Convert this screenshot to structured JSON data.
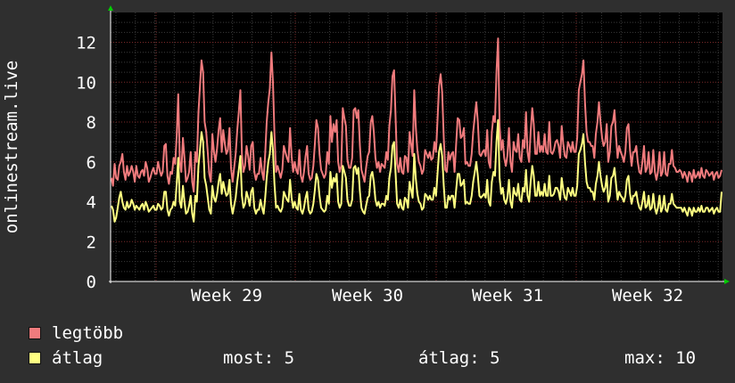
{
  "chart_data": {
    "type": "line",
    "ylabel": "onlinestream.live",
    "ylim": [
      0,
      13.5
    ],
    "yticks": [
      0,
      2,
      4,
      6,
      8,
      10,
      12
    ],
    "x_week_labels": [
      "Week 29",
      "Week 30",
      "Week 31",
      "Week 32"
    ],
    "grid": true,
    "series": [
      {
        "name": "legtöbb",
        "color": "#f07b7d",
        "values": [
          5.2,
          4.8,
          5.9,
          5.2,
          5.1,
          5.8,
          6.0,
          6.4,
          5.5,
          5.1,
          5.8,
          5.3,
          5.5,
          5.8,
          5.5,
          5.0,
          5.8,
          5.3,
          5.2,
          5.5,
          5.6,
          5.3,
          6.0,
          5.7,
          5.0,
          5.2,
          5.5,
          5.7,
          5.4,
          5.4,
          6.0,
          5.6,
          5.3,
          5.5,
          6.8,
          6.9,
          5.3,
          4.9,
          5.5,
          5.4,
          6.2,
          5.9,
          7.3,
          9.4,
          6.0,
          5.5,
          7.2,
          6.2,
          5.0,
          5.2,
          5.5,
          6.5,
          5.0,
          4.5,
          6.5,
          6.0,
          8.5,
          9.8,
          11.1,
          10.5,
          8.0,
          7.5,
          6.5,
          5.4,
          5.0,
          7.4,
          6.5,
          6.0,
          6.7,
          7.6,
          8.2,
          6.5,
          7.6,
          6.9,
          6.4,
          6.6,
          7.7,
          5.7,
          5.0,
          5.7,
          6.4,
          7.6,
          8.5,
          9.6,
          6.4,
          5.5,
          5.8,
          6.8,
          6.3,
          5.6,
          6.8,
          7.0,
          5.5,
          5.1,
          5.4,
          5.4,
          6.2,
          5.5,
          5.1,
          6.4,
          8.0,
          9.0,
          9.7,
          11.5,
          10.0,
          7.4,
          5.5,
          5.8,
          5.5,
          5.2,
          5.6,
          6.8,
          6.5,
          6.2,
          6.0,
          7.7,
          6.3,
          5.5,
          6.0,
          5.6,
          5.4,
          6.6,
          5.3,
          5.0,
          5.5,
          6.3,
          6.8,
          5.4,
          5.1,
          5.2,
          5.8,
          6.9,
          8.1,
          7.7,
          6.4,
          5.6,
          5.4,
          5.2,
          5.4,
          6.5,
          5.9,
          8.3,
          7.0,
          7.9,
          7.5,
          8.1,
          6.0,
          5.5,
          5.8,
          8.7,
          8.2,
          7.8,
          6.1,
          5.7,
          5.7,
          6.2,
          8.6,
          8.7,
          8.2,
          8.6,
          6.8,
          5.6,
          5.3,
          5.0,
          5.7,
          6.3,
          6.5,
          8.0,
          8.3,
          7.5,
          6.2,
          5.7,
          6.0,
          5.5,
          5.9,
          5.8,
          5.7,
          6.5,
          6.1,
          7.8,
          8.6,
          10.3,
          10.6,
          8.2,
          5.9,
          5.5,
          6.2,
          5.5,
          5.4,
          6.3,
          6.2,
          5.5,
          7.5,
          6.9,
          6.3,
          9.6,
          7.8,
          6.6,
          6.0,
          5.8,
          5.4,
          5.6,
          6.6,
          6.4,
          6.2,
          6.5,
          6.1,
          6.2,
          7.0,
          6.5,
          8.1,
          9.8,
          10.4,
          9.5,
          7.2,
          5.6,
          5.5,
          6.5,
          6.1,
          6.4,
          6.5,
          5.5,
          6.9,
          8.2,
          8.1,
          7.2,
          7.3,
          7.7,
          5.9,
          6.0,
          5.8,
          5.8,
          6.4,
          7.5,
          8.3,
          9.0,
          8.0,
          6.4,
          6.3,
          6.5,
          6.6,
          6.3,
          7.6,
          6.0,
          5.7,
          7.5,
          8.3,
          8.0,
          10.5,
          12.2,
          7.8,
          6.6,
          7.1,
          6.2,
          5.8,
          6.3,
          7.7,
          6.0,
          5.5,
          7.0,
          6.6,
          6.5,
          7.4,
          6.2,
          6.0,
          7.1,
          6.7,
          8.5,
          6.5,
          6.0,
          7.5,
          8.7,
          7.9,
          6.4,
          6.4,
          7.5,
          6.5,
          6.8,
          6.5,
          7.4,
          6.5,
          6.4,
          8.0,
          6.5,
          6.4,
          6.6,
          7.0,
          7.1,
          6.8,
          6.2,
          7.8,
          6.9,
          6.3,
          6.2,
          7.0,
          6.8,
          6.5,
          7.0,
          6.5,
          6.5,
          7.2,
          9.6,
          10.0,
          10.4,
          11.1,
          9.0,
          7.5,
          7.0,
          7.0,
          6.8,
          6.8,
          6.2,
          7.4,
          8.0,
          9.0,
          8.0,
          7.2,
          6.8,
          7.0,
          7.9,
          6.0,
          6.5,
          7.8,
          8.0,
          8.6,
          7.3,
          6.2,
          6.8,
          6.5,
          6.3,
          6.0,
          6.5,
          7.7,
          7.9,
          6.6,
          5.8,
          6.5,
          6.5,
          6.8,
          6.0,
          5.5,
          5.4,
          6.0,
          6.8,
          5.5,
          5.7,
          6.5,
          5.4,
          5.5,
          6.6,
          5.5,
          5.1,
          5.5,
          6.5,
          5.3,
          5.5,
          6.5,
          5.4,
          5.3,
          5.9,
          5.9,
          6.6,
          5.8,
          5.7,
          5.5,
          5.5,
          5.6,
          5.5,
          5.2,
          5.5,
          5.3,
          5.0,
          5.5,
          5.4,
          5.0,
          5.6,
          5.2,
          5.3,
          5.5,
          5.2,
          5.7,
          5.3,
          5.2,
          5.6,
          5.5,
          5.3,
          5.4,
          5.5,
          5.1,
          5.4,
          5.5,
          5.2,
          5.3,
          5.6
        ]
      },
      {
        "name": "átlag",
        "color": "#ffff82",
        "values": [
          3.8,
          3.6,
          3.0,
          3.2,
          3.7,
          4.2,
          4.5,
          4.0,
          3.7,
          3.6,
          4.0,
          3.7,
          3.8,
          4.1,
          3.9,
          3.6,
          3.8,
          3.7,
          3.6,
          3.8,
          3.9,
          3.6,
          4.0,
          3.8,
          3.5,
          3.6,
          3.7,
          3.8,
          3.6,
          3.6,
          3.9,
          3.8,
          3.6,
          3.7,
          4.5,
          4.5,
          3.6,
          3.3,
          3.6,
          3.7,
          4.0,
          3.8,
          4.9,
          6.2,
          4.0,
          3.7,
          4.8,
          4.0,
          3.4,
          3.5,
          3.8,
          4.3,
          3.4,
          3.0,
          4.3,
          4.0,
          5.8,
          6.6,
          7.5,
          7.0,
          5.2,
          4.8,
          4.2,
          3.6,
          3.4,
          4.8,
          4.2,
          4.0,
          4.4,
          5.0,
          5.4,
          4.4,
          5.0,
          4.6,
          4.3,
          4.4,
          5.1,
          3.9,
          3.4,
          3.8,
          4.2,
          5.0,
          5.6,
          6.3,
          4.3,
          3.7,
          3.9,
          4.5,
          4.2,
          3.8,
          4.5,
          4.7,
          3.7,
          3.4,
          3.6,
          3.6,
          4.1,
          3.7,
          3.4,
          4.2,
          5.2,
          6.0,
          6.4,
          7.5,
          6.6,
          4.9,
          3.7,
          3.8,
          3.6,
          3.5,
          3.7,
          4.5,
          4.3,
          4.1,
          4.0,
          5.1,
          4.2,
          3.7,
          4.0,
          3.7,
          3.6,
          4.4,
          3.6,
          3.4,
          3.7,
          4.2,
          4.5,
          3.6,
          3.4,
          3.5,
          3.9,
          4.6,
          5.4,
          5.1,
          4.3,
          3.7,
          3.6,
          3.5,
          3.6,
          4.3,
          3.9,
          5.5,
          4.7,
          5.2,
          5.0,
          5.4,
          4.0,
          3.7,
          3.9,
          5.8,
          5.5,
          5.2,
          4.1,
          3.8,
          3.8,
          4.1,
          5.7,
          5.8,
          5.4,
          5.7,
          4.5,
          3.7,
          3.5,
          3.4,
          3.8,
          4.2,
          4.3,
          5.3,
          5.5,
          5.0,
          4.1,
          3.8,
          4.0,
          3.7,
          3.9,
          3.9,
          3.8,
          4.3,
          4.1,
          5.2,
          5.7,
          6.8,
          7.0,
          5.4,
          3.9,
          3.7,
          4.1,
          3.7,
          3.6,
          4.2,
          4.1,
          3.7,
          5.0,
          4.6,
          4.2,
          6.4,
          5.2,
          4.4,
          4.0,
          3.9,
          3.6,
          3.7,
          4.4,
          4.3,
          4.1,
          4.3,
          4.1,
          4.1,
          4.7,
          4.3,
          5.4,
          6.5,
          6.9,
          6.3,
          4.8,
          3.7,
          3.7,
          4.3,
          4.1,
          4.3,
          4.3,
          3.7,
          4.6,
          5.4,
          5.4,
          4.8,
          4.9,
          5.1,
          3.9,
          4.0,
          3.9,
          3.9,
          4.3,
          5.0,
          5.5,
          6.0,
          5.3,
          4.3,
          4.2,
          4.3,
          4.4,
          4.2,
          5.1,
          4.0,
          3.8,
          5.0,
          5.5,
          5.3,
          7.0,
          8.1,
          5.2,
          4.4,
          4.7,
          4.1,
          3.9,
          4.2,
          5.1,
          4.0,
          3.7,
          4.7,
          4.4,
          4.3,
          4.9,
          4.1,
          4.0,
          4.7,
          4.5,
          5.6,
          4.3,
          4.0,
          5.0,
          5.8,
          5.3,
          4.3,
          4.3,
          5.0,
          4.3,
          4.5,
          4.3,
          4.9,
          4.3,
          4.3,
          5.3,
          4.3,
          4.3,
          4.4,
          4.7,
          4.7,
          4.5,
          4.1,
          5.2,
          4.6,
          4.2,
          4.1,
          4.7,
          4.5,
          4.3,
          4.7,
          4.3,
          4.3,
          4.8,
          6.4,
          6.6,
          6.9,
          7.4,
          6.0,
          5.0,
          4.7,
          4.7,
          4.5,
          4.5,
          4.1,
          4.9,
          5.3,
          6.0,
          5.3,
          4.8,
          4.5,
          4.7,
          5.3,
          4.0,
          4.3,
          5.2,
          5.3,
          5.7,
          4.9,
          4.1,
          4.5,
          4.3,
          4.2,
          4.0,
          4.3,
          5.1,
          5.3,
          4.4,
          3.9,
          4.3,
          4.3,
          4.5,
          4.0,
          3.7,
          3.6,
          4.0,
          4.5,
          3.7,
          3.8,
          4.3,
          3.6,
          3.7,
          4.4,
          3.7,
          3.4,
          3.7,
          4.3,
          3.5,
          3.7,
          4.3,
          3.6,
          3.5,
          3.9,
          3.9,
          4.4,
          3.9,
          3.8,
          3.7,
          3.7,
          3.7,
          3.7,
          3.5,
          3.7,
          3.5,
          3.3,
          3.7,
          3.6,
          3.3,
          3.7,
          3.5,
          3.5,
          3.7,
          3.5,
          3.8,
          3.5,
          3.5,
          3.7,
          3.7,
          3.5,
          3.6,
          3.7,
          3.4,
          3.6,
          3.7,
          3.5,
          3.5,
          4.5
        ]
      }
    ]
  },
  "legend": [
    {
      "label": "legtöbb",
      "color": "#f07b7d"
    },
    {
      "label": "átlag",
      "color": "#ffff82"
    }
  ],
  "stats": {
    "current_label": "most:",
    "current_value": "5",
    "avg_label": "átlag:",
    "avg_value": "5",
    "max_label": "max:",
    "max_value": "10"
  }
}
